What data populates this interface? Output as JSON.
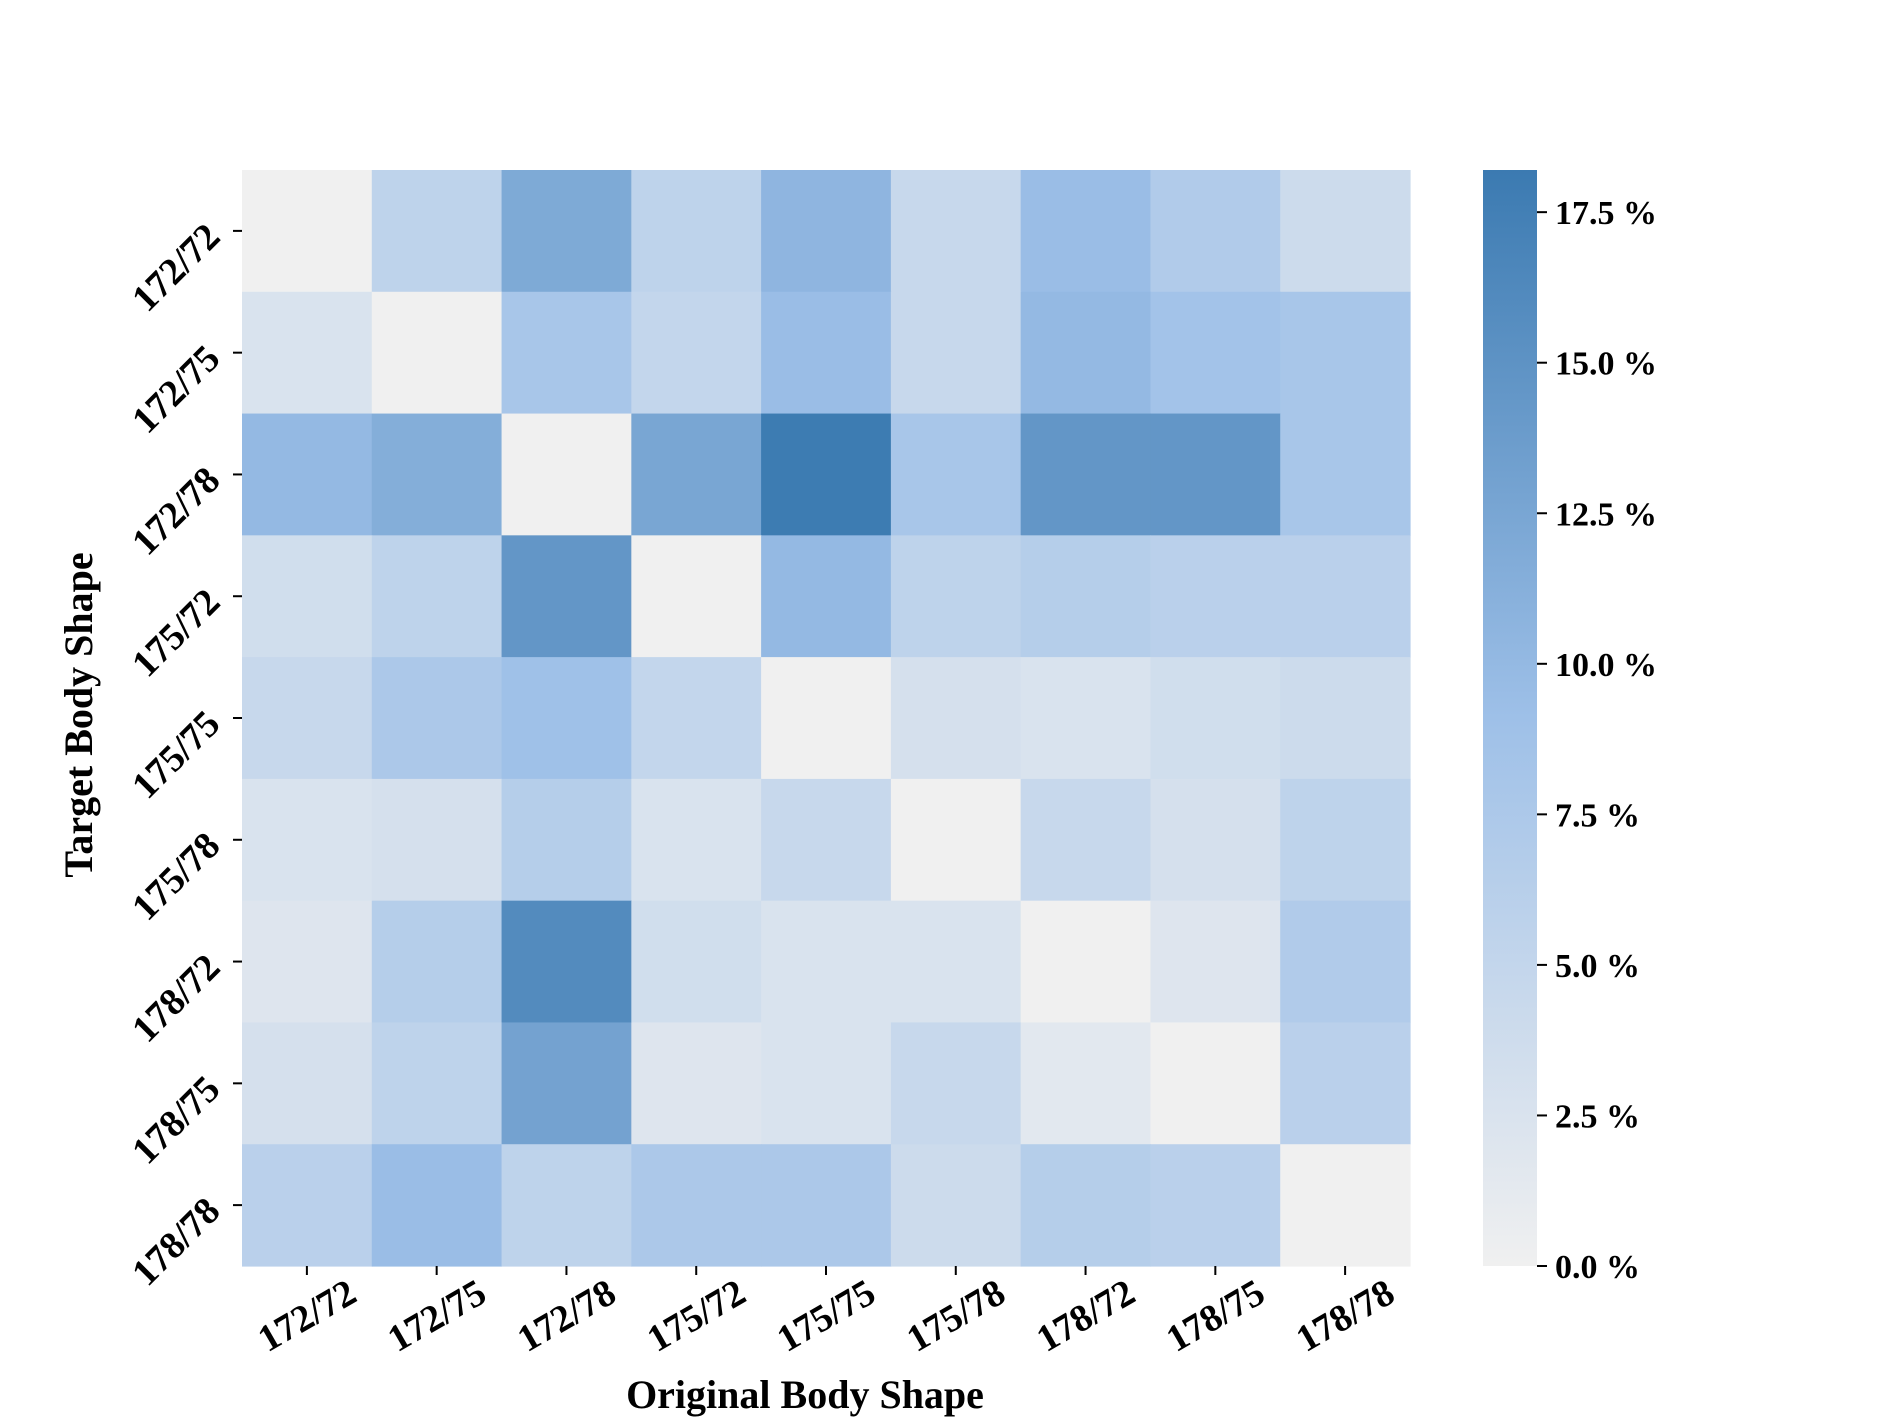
{
  "chart_data": {
    "type": "heatmap",
    "title": "",
    "xlabel": "Original Body Shape",
    "ylabel": "Target Body Shape",
    "x_categories": [
      "172/72",
      "172/75",
      "172/78",
      "175/72",
      "175/75",
      "175/78",
      "178/72",
      "178/75",
      "178/78"
    ],
    "y_categories": [
      "172/72",
      "172/75",
      "172/78",
      "175/72",
      "175/75",
      "175/78",
      "178/72",
      "178/75",
      "178/78"
    ],
    "values": [
      [
        0.0,
        5.5,
        12.0,
        5.5,
        10.5,
        4.5,
        9.5,
        7.0,
        4.0
      ],
      [
        2.5,
        0.0,
        8.0,
        5.0,
        9.5,
        4.5,
        10.0,
        8.5,
        8.0
      ],
      [
        10.0,
        11.5,
        0.0,
        12.5,
        18.0,
        8.0,
        14.5,
        14.5,
        8.0
      ],
      [
        3.5,
        5.5,
        14.5,
        0.0,
        10.0,
        5.5,
        6.5,
        6.0,
        6.0
      ],
      [
        4.5,
        7.5,
        9.0,
        5.0,
        0.0,
        3.0,
        2.5,
        3.5,
        4.0
      ],
      [
        2.5,
        3.0,
        6.5,
        2.5,
        4.5,
        0.0,
        4.5,
        3.0,
        5.5
      ],
      [
        2.0,
        6.5,
        16.0,
        3.5,
        2.5,
        2.5,
        0.0,
        2.0,
        7.0
      ],
      [
        3.0,
        5.5,
        13.0,
        2.0,
        2.5,
        4.5,
        1.5,
        0.0,
        6.0
      ],
      [
        6.0,
        9.5,
        5.5,
        7.5,
        7.5,
        4.0,
        6.5,
        6.0,
        0.0
      ]
    ],
    "value_range": [
      0.0,
      18.2
    ],
    "colorbar": {
      "ticks": [
        0.0,
        2.5,
        5.0,
        7.5,
        10.0,
        12.5,
        15.0,
        17.5
      ],
      "tick_labels": [
        "0.0 %",
        "2.5 %",
        "5.0 %",
        "7.5 %",
        "10.0 %",
        "12.5 %",
        "15.0 %",
        "17.5 %"
      ],
      "color_low": "#f0f0f0",
      "color_mid": "#9ec0e8",
      "color_high": "#3b7ab1"
    },
    "grid": false,
    "legend": "colorbar-right"
  }
}
